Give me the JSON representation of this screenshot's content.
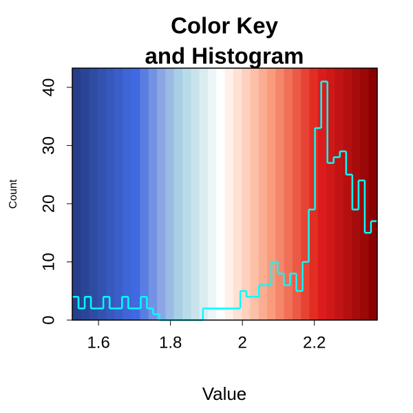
{
  "chart_data": {
    "type": "histogram",
    "title": [
      "Color Key",
      "and Histogram"
    ],
    "x_label": "Value",
    "y_label": "Count",
    "bins": [
      1.527,
      1.5443,
      1.5616,
      1.5789,
      1.5962,
      1.6135,
      1.6308,
      1.6481,
      1.6654,
      1.6827,
      1.7,
      1.7173,
      1.7346,
      1.7519,
      1.7692,
      1.7865,
      1.8038,
      1.8211,
      1.8384,
      1.8557,
      1.873,
      1.8903,
      1.9076,
      1.9249,
      1.9422,
      1.9595,
      1.9768,
      1.9941,
      2.0114,
      2.0287,
      2.046,
      2.0633,
      2.0806,
      2.0979,
      2.1152,
      2.1325,
      2.1498,
      2.1671,
      2.1844,
      2.2017,
      2.219,
      2.2363,
      2.2536,
      2.2709,
      2.2882,
      2.3055,
      2.3228,
      2.3401,
      2.3574,
      2.3747
    ],
    "values": [
      4,
      2,
      4,
      2,
      2,
      4,
      2,
      2,
      4,
      2,
      2,
      4,
      2,
      1,
      0,
      0,
      0,
      0,
      0,
      0,
      0,
      2,
      2,
      2,
      2,
      2,
      2,
      5,
      4,
      4,
      6,
      6,
      10,
      8,
      6,
      8,
      5,
      10,
      19,
      33,
      41,
      27,
      28,
      29,
      25,
      19,
      24,
      15,
      17
    ],
    "color": "#00ffff",
    "key_colors": [
      "#273f8a",
      "#2b4596",
      "#2f4ca3",
      "#3352b0",
      "#3759bd",
      "#3b5fca",
      "#3f66d7",
      "#4169e1",
      "#5a7de2",
      "#7392e3",
      "#8ca6e4",
      "#9bbbe5",
      "#a9cfe6",
      "#b8dbe8",
      "#c9e3ec",
      "#dbecf1",
      "#ecf5f7",
      "#fdfefe",
      "#fff0ea",
      "#fee1d4",
      "#fdd0bf",
      "#fcbfa8",
      "#fbad92",
      "#fa9b7c",
      "#f6866a",
      "#f17058",
      "#ec5a46",
      "#e74334",
      "#e22d22",
      "#dc1c1c",
      "#cf1818",
      "#c21414",
      "#b51010",
      "#a70c0c",
      "#9a0808",
      "#8b0000"
    ],
    "xlim": [
      1.527,
      2.3747
    ],
    "ylim": [
      0,
      43.3
    ],
    "xticks": [
      1.6,
      1.8,
      2,
      2.2
    ],
    "yticks": [
      0,
      10,
      20,
      30,
      40
    ]
  }
}
